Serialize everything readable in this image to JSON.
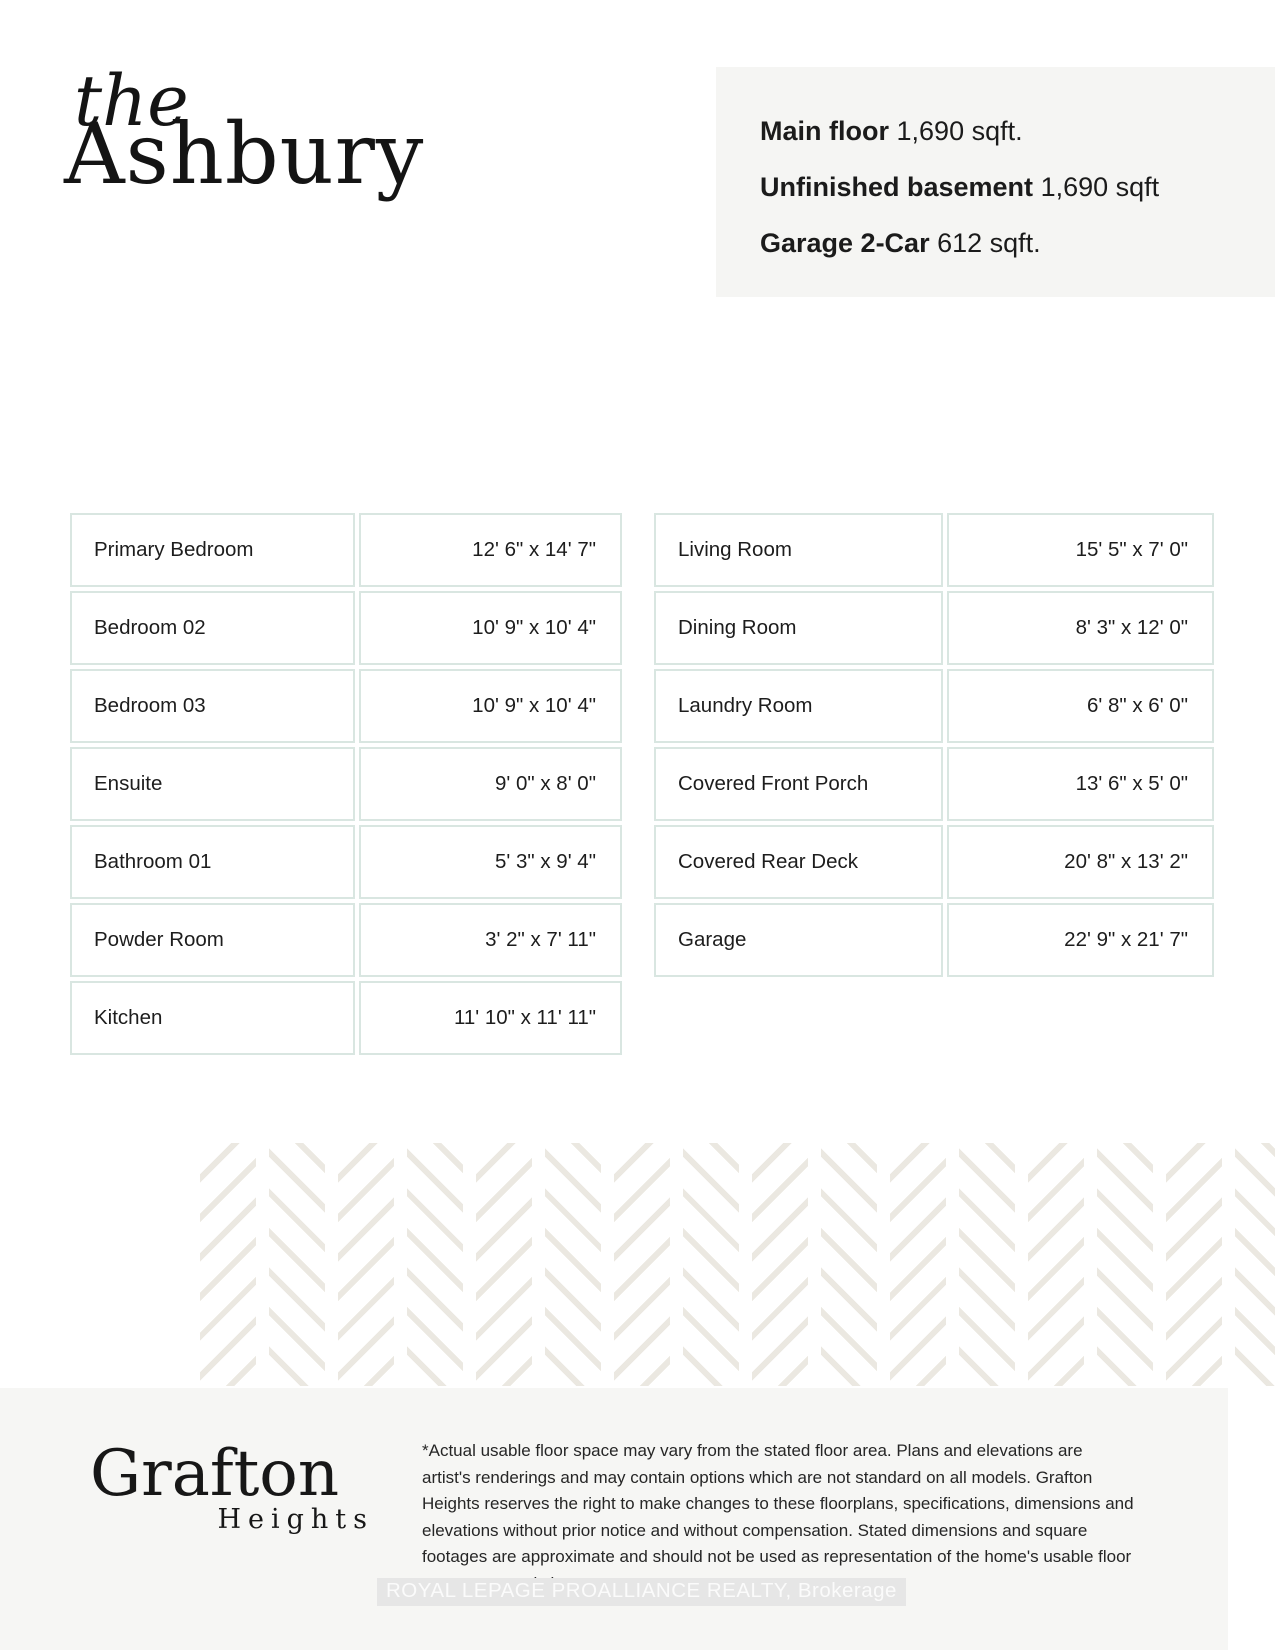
{
  "logo": {
    "line1": "the",
    "line2": "Ashbury"
  },
  "summary": {
    "items": [
      {
        "label": "Main floor",
        "value": "1,690 sqft."
      },
      {
        "label": "Unfinished basement",
        "value": "1,690 sqft"
      },
      {
        "label": "Garage 2-Car",
        "value": "612 sqft."
      }
    ]
  },
  "tables": {
    "left": [
      {
        "name": "Primary Bedroom",
        "dims": "12' 6\" x 14' 7\""
      },
      {
        "name": "Bedroom 02",
        "dims": "10' 9\" x 10' 4\""
      },
      {
        "name": "Bedroom 03",
        "dims": "10' 9\" x 10' 4\""
      },
      {
        "name": "Ensuite",
        "dims": "9' 0\" x 8' 0\""
      },
      {
        "name": "Bathroom 01",
        "dims": "5' 3\" x 9' 4\""
      },
      {
        "name": "Powder Room",
        "dims": "3' 2\" x 7' 11\""
      },
      {
        "name": "Kitchen",
        "dims": "11' 10\" x 11' 11\""
      }
    ],
    "right": [
      {
        "name": "Living Room",
        "dims": "15' 5\" x 7' 0\""
      },
      {
        "name": "Dining Room",
        "dims": "8' 3\" x 12' 0\""
      },
      {
        "name": "Laundry Room",
        "dims": "6' 8\" x 6' 0\""
      },
      {
        "name": "Covered Front Porch",
        "dims": "13' 6\" x 5' 0\""
      },
      {
        "name": "Covered Rear Deck",
        "dims": "20' 8\" x 13' 2\""
      },
      {
        "name": "Garage",
        "dims": "22' 9\" x 21' 7\""
      }
    ]
  },
  "footer": {
    "brand_line1": "Grafton",
    "brand_line2": "Heights",
    "disclaimer_lines": [
      "*Actual usable floor space may vary from the stated floor area. Plans and elevations are",
      "artist's renderings and may contain options which are not standard on all models. Grafton",
      "Heights reserves the right to make changes to these floorplans, specifications, dimensions and",
      "elevations without prior notice and without compensation. Stated dimensions and square",
      "footages are approximate and should not be used as representation of the home's usable floor",
      "space or actual size."
    ],
    "watermark": "ROYAL LEPAGE PROALLIANCE REALTY, Brokerage"
  },
  "colors": {
    "table_border": "#d9e6e1",
    "summary_bg": "#f5f5f3",
    "footer_bg": "#f6f6f4",
    "pattern_stroke": "#ebe8e1",
    "watermark_bg": "#e6e6e6",
    "text": "#1d1d1d"
  }
}
